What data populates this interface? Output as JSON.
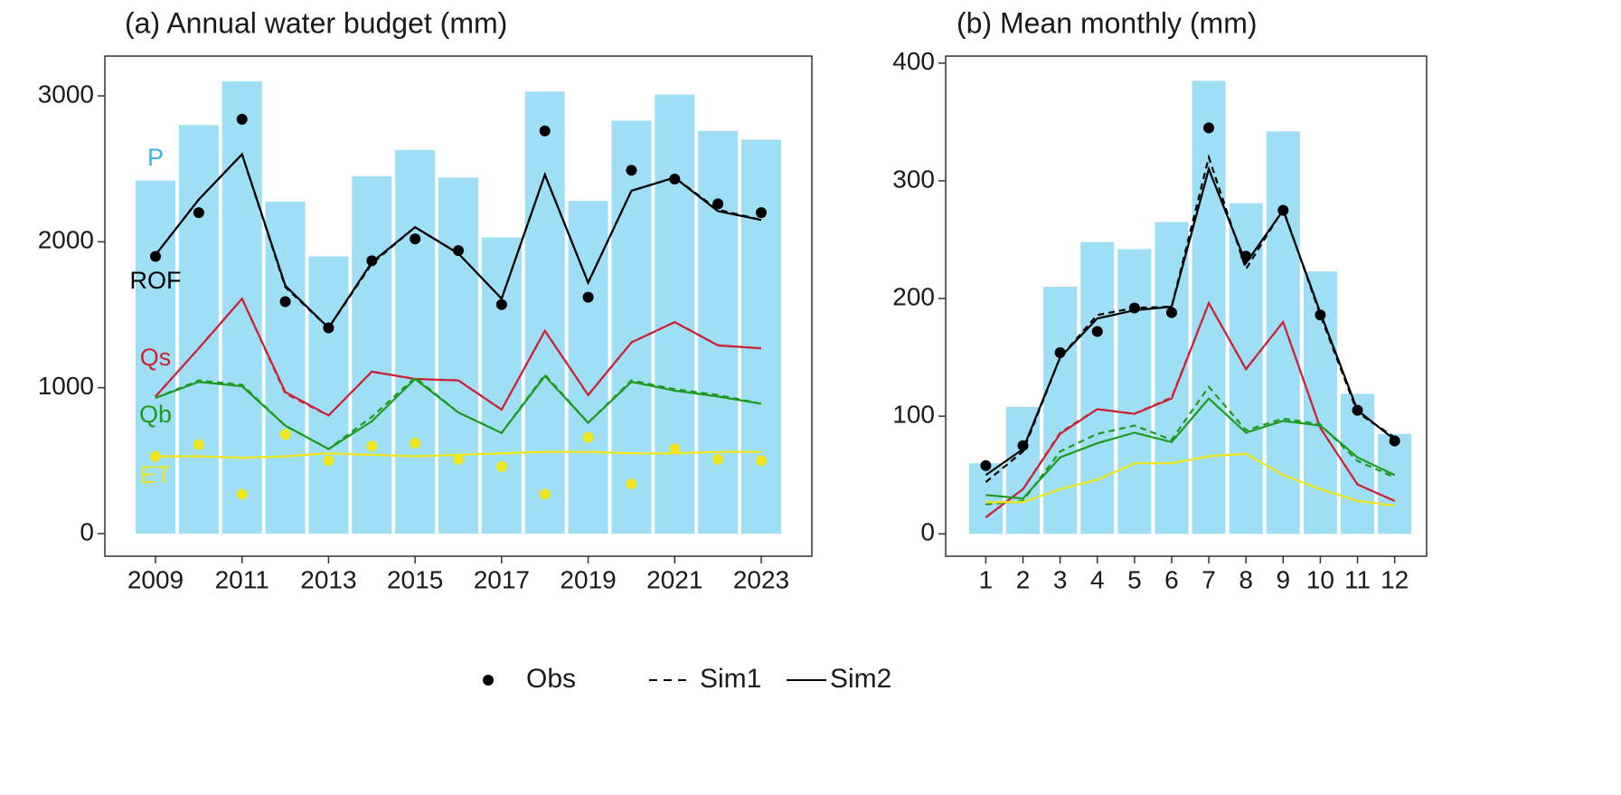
{
  "chart_data": [
    {
      "type": "bar_line",
      "title": "(a) Annual water budget (mm)",
      "x": [
        2009,
        2010,
        2011,
        2012,
        2013,
        2014,
        2015,
        2016,
        2017,
        2018,
        2019,
        2020,
        2021,
        2022,
        2023
      ],
      "xlim": [
        2007.83,
        2024.17
      ],
      "xticks": [
        2009,
        2011,
        2013,
        2015,
        2017,
        2019,
        2021,
        2023
      ],
      "ylim": [
        -155,
        3273
      ],
      "yticks": [
        0,
        1000,
        2000,
        3000
      ],
      "series": [
        {
          "name": "P",
          "color": "#9edff6",
          "label_color": "#33b5e5",
          "bar": [
            2420,
            2800,
            3100,
            2275,
            1900,
            2450,
            2630,
            2440,
            2030,
            3030,
            2280,
            2830,
            3010,
            2760,
            2700
          ]
        },
        {
          "name": "ROF",
          "color": "#000000",
          "obs": [
            1900,
            2200,
            2840,
            1590,
            1410,
            1870,
            2020,
            1940,
            1570,
            2760,
            1620,
            2490,
            2430,
            2260,
            2200
          ],
          "sim1": [
            1910,
            2290,
            2600,
            1690,
            1410,
            1850,
            2100,
            1920,
            1610,
            2460,
            1720,
            2350,
            2440,
            2220,
            2150
          ],
          "sim2": [
            1910,
            2290,
            2600,
            1700,
            1410,
            1860,
            2100,
            1920,
            1610,
            2460,
            1720,
            2350,
            2440,
            2210,
            2150
          ]
        },
        {
          "name": "Qs",
          "color": "#cc2233",
          "sim1": [
            940,
            1270,
            1610,
            960,
            810,
            1110,
            1060,
            1050,
            850,
            1390,
            950,
            1310,
            1450,
            1290,
            1270
          ],
          "sim2": [
            940,
            1270,
            1610,
            970,
            810,
            1110,
            1060,
            1050,
            850,
            1390,
            950,
            1310,
            1450,
            1290,
            1270
          ]
        },
        {
          "name": "Qb",
          "color": "#1f9a1f",
          "sim1": [
            930,
            1050,
            1020,
            740,
            580,
            800,
            1070,
            830,
            690,
            1090,
            760,
            1050,
            990,
            950,
            890
          ],
          "sim2": [
            930,
            1040,
            1010,
            740,
            580,
            770,
            1060,
            830,
            690,
            1080,
            760,
            1040,
            980,
            940,
            890
          ]
        },
        {
          "name": "ET",
          "color": "#eee620",
          "obs": [
            530,
            610,
            270,
            680,
            500,
            600,
            620,
            510,
            460,
            270,
            660,
            340,
            580,
            510,
            500
          ],
          "sim1": [
            530,
            530,
            520,
            530,
            550,
            540,
            530,
            540,
            550,
            560,
            560,
            550,
            550,
            560,
            560
          ],
          "sim2": [
            530,
            530,
            520,
            530,
            550,
            540,
            530,
            540,
            550,
            560,
            560,
            550,
            550,
            560,
            560
          ]
        }
      ]
    },
    {
      "type": "bar_line",
      "title": "(b) Mean monthly (mm)",
      "x": [
        1,
        2,
        3,
        4,
        5,
        6,
        7,
        8,
        9,
        10,
        11,
        12
      ],
      "xlim": [
        -0.08,
        12.86
      ],
      "xticks": [
        1,
        2,
        3,
        4,
        5,
        6,
        7,
        8,
        9,
        10,
        11,
        12
      ],
      "ylim": [
        -19,
        406
      ],
      "yticks": [
        0,
        100,
        200,
        300,
        400
      ],
      "series": [
        {
          "color": "#9edff6",
          "bar": [
            60,
            108,
            210,
            248,
            242,
            265,
            385,
            281,
            342,
            223,
            119,
            85
          ]
        },
        {
          "color": "#000000",
          "obs": [
            58,
            75,
            154,
            172,
            192,
            188,
            345,
            236,
            275,
            186,
            105,
            79
          ],
          "sim1": [
            44,
            70,
            150,
            186,
            192,
            193,
            320,
            225,
            276,
            186,
            103,
            82
          ],
          "sim2": [
            50,
            72,
            150,
            183,
            190,
            193,
            310,
            230,
            275,
            188,
            105,
            80
          ]
        },
        {
          "color": "#cc2233",
          "sim1": [
            14,
            38,
            86,
            106,
            102,
            116,
            196,
            140,
            180,
            90,
            42,
            28
          ],
          "sim2": [
            14,
            38,
            85,
            106,
            102,
            115,
            196,
            140,
            180,
            90,
            42,
            28
          ]
        },
        {
          "color": "#1f9a1f",
          "sim1": [
            25,
            28,
            70,
            85,
            92,
            80,
            125,
            88,
            98,
            93,
            62,
            48
          ],
          "sim2": [
            33,
            30,
            65,
            77,
            86,
            78,
            115,
            86,
            96,
            92,
            65,
            50
          ]
        },
        {
          "color": "#eee620",
          "sim1": [
            27,
            27,
            38,
            46,
            60,
            60,
            66,
            68,
            50,
            38,
            28,
            24
          ],
          "sim2": [
            27,
            27,
            38,
            46,
            60,
            60,
            66,
            68,
            50,
            38,
            28,
            24
          ]
        }
      ]
    }
  ],
  "legend": [
    {
      "label": "Obs",
      "style": "point"
    },
    {
      "label": "Sim1",
      "style": "dashed"
    },
    {
      "label": "Sim2",
      "style": "solid"
    }
  ]
}
